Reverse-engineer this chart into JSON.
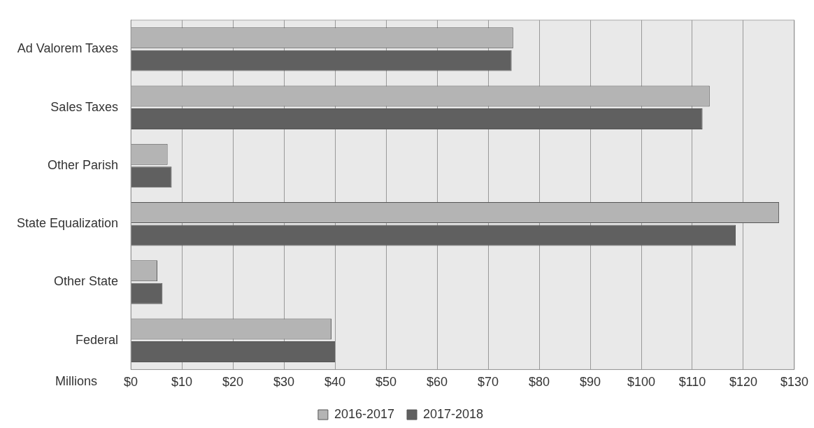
{
  "chart_data": {
    "type": "bar",
    "orientation": "horizontal",
    "xlabel": "Millions",
    "categories": [
      "Ad Valorem Taxes",
      "Sales Taxes",
      "Other Parish",
      "State Equalization",
      "Other State",
      "Federal"
    ],
    "series": [
      {
        "name": "2016-2017",
        "color": "#b4b4b4",
        "values": [
          74.9,
          113.4,
          7.2,
          127.0,
          5.2,
          39.3
        ]
      },
      {
        "name": "2017-2018",
        "color": "#606060",
        "values": [
          74.6,
          112.0,
          8.0,
          118.5,
          6.2,
          40.0
        ]
      }
    ],
    "xlim": [
      0,
      130
    ],
    "xticks": [
      {
        "value": 0,
        "label": "$0"
      },
      {
        "value": 10,
        "label": "$10"
      },
      {
        "value": 20,
        "label": "$20"
      },
      {
        "value": 30,
        "label": "$30"
      },
      {
        "value": 40,
        "label": "$40"
      },
      {
        "value": 50,
        "label": "$50"
      },
      {
        "value": 60,
        "label": "$60"
      },
      {
        "value": 70,
        "label": "$70"
      },
      {
        "value": 80,
        "label": "$80"
      },
      {
        "value": 90,
        "label": "$90"
      },
      {
        "value": 100,
        "label": "$100"
      },
      {
        "value": 110,
        "label": "$110"
      },
      {
        "value": 120,
        "label": "$120"
      },
      {
        "value": 130,
        "label": "$130"
      }
    ],
    "grid": "x",
    "legend": "bottom"
  }
}
